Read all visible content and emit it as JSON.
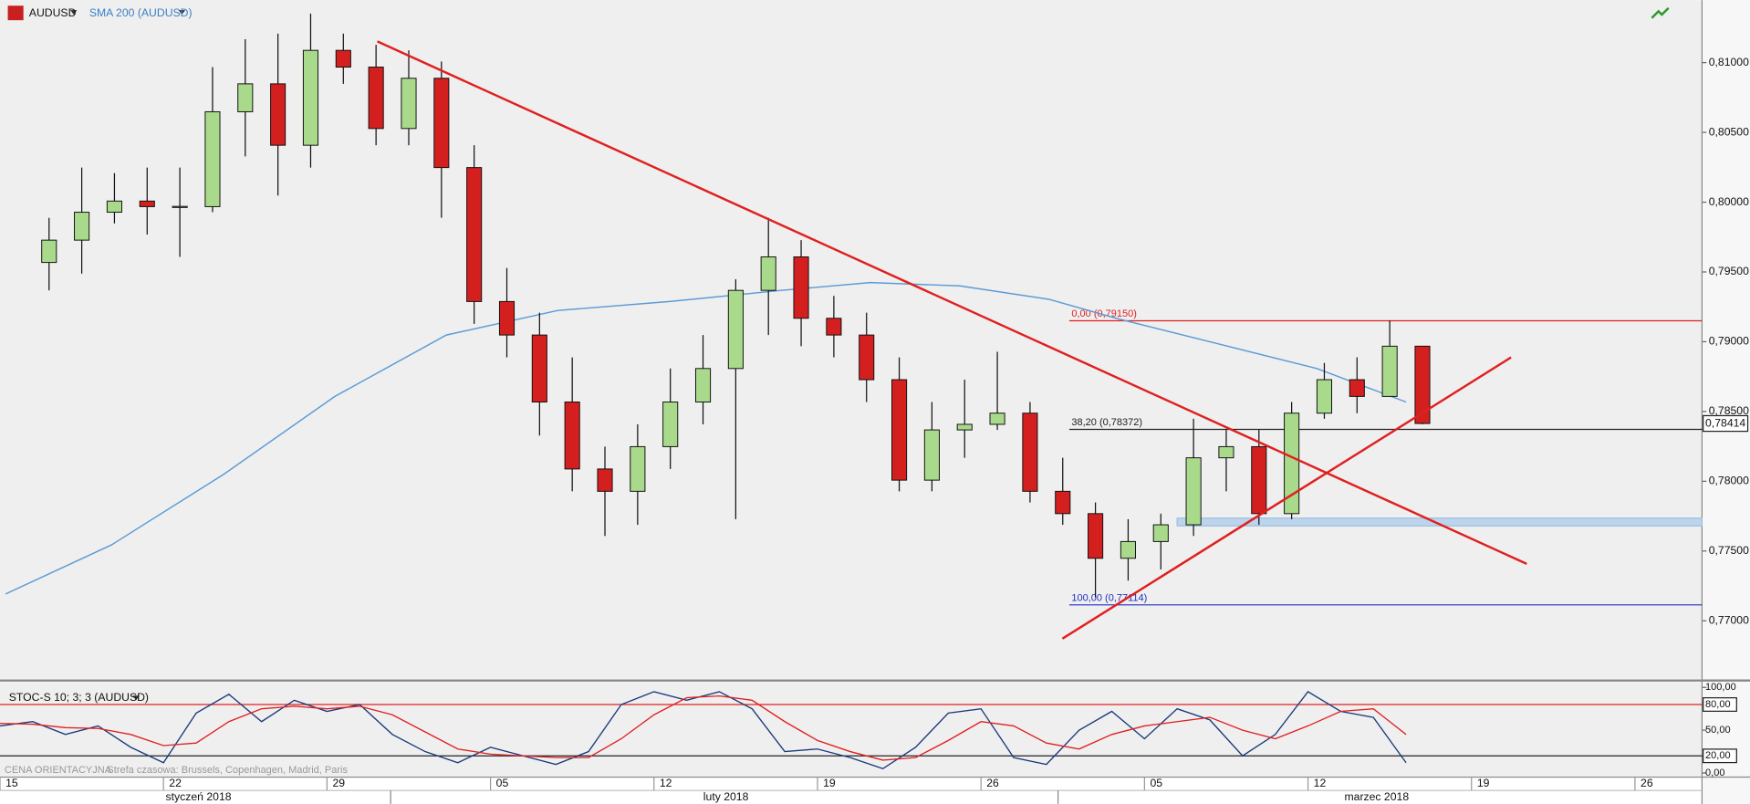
{
  "chart_data": [
    {
      "type": "candlestick",
      "symbol": "AUDUSD",
      "indicator": "SMA 200 (AUDUSD)",
      "x": [
        1.5,
        2.5,
        3.5,
        4.5,
        5.5,
        6.5,
        7.5,
        8.5,
        9.5,
        10.5,
        11.5,
        12.5,
        13.5,
        14.5,
        15.5,
        16.5,
        17.5,
        18.5,
        19.5,
        20.5,
        21.5,
        22.5,
        23.5,
        24.5,
        25.5,
        26.5,
        27.5,
        28.5,
        29.5,
        30.5,
        31.5,
        32.5,
        33.5,
        34.5,
        35.5,
        36.5,
        37.5,
        38.5,
        39.5,
        40.5,
        41.5,
        42.5,
        43.5
      ],
      "open": [
        0.79568,
        0.79728,
        0.79928,
        0.80008,
        0.79968,
        0.79968,
        0.80648,
        0.80848,
        0.80408,
        0.81088,
        0.80968,
        0.80528,
        0.80888,
        0.80248,
        0.79288,
        0.79048,
        0.78568,
        0.78088,
        0.77928,
        0.78248,
        0.78568,
        0.78808,
        0.79368,
        0.79608,
        0.79168,
        0.79048,
        0.78728,
        0.78008,
        0.78368,
        0.78408,
        0.78488,
        0.77928,
        0.77768,
        0.77448,
        0.77568,
        0.77688,
        0.78168,
        0.78248,
        0.77768,
        0.78488,
        0.78728,
        0.78608,
        0.78968
      ],
      "high": [
        0.79888,
        0.80248,
        0.80208,
        0.80248,
        0.80248,
        0.80968,
        0.81168,
        0.81208,
        0.81352,
        0.81208,
        0.81128,
        0.81088,
        0.81008,
        0.80408,
        0.79528,
        0.79208,
        0.78888,
        0.78248,
        0.78408,
        0.78808,
        0.79048,
        0.79448,
        0.79888,
        0.79728,
        0.79328,
        0.79208,
        0.78888,
        0.78568,
        0.78728,
        0.78928,
        0.78568,
        0.78168,
        0.77848,
        0.77728,
        0.77768,
        0.78448,
        0.78368,
        0.78368,
        0.78568,
        0.78848,
        0.78888,
        0.79152,
        0.78968
      ],
      "low": [
        0.79368,
        0.79488,
        0.79848,
        0.79768,
        0.79608,
        0.79928,
        0.80328,
        0.80048,
        0.80248,
        0.80848,
        0.80408,
        0.80408,
        0.79888,
        0.79128,
        0.78888,
        0.78328,
        0.77928,
        0.77608,
        0.77688,
        0.78088,
        0.78408,
        0.77728,
        0.79048,
        0.78968,
        0.78888,
        0.78568,
        0.77928,
        0.77928,
        0.78168,
        0.78368,
        0.77848,
        0.77688,
        0.77168,
        0.77288,
        0.77368,
        0.77608,
        0.77928,
        0.77688,
        0.77728,
        0.78448,
        0.78488,
        0.78608,
        0.78408
      ],
      "close": [
        0.79728,
        0.79928,
        0.80008,
        0.79968,
        0.7997,
        0.80648,
        0.80848,
        0.80408,
        0.81088,
        0.80968,
        0.80528,
        0.80888,
        0.80248,
        0.79288,
        0.79048,
        0.78568,
        0.78088,
        0.77928,
        0.78248,
        0.78568,
        0.78808,
        0.79368,
        0.79608,
        0.79168,
        0.79048,
        0.78728,
        0.78008,
        0.78368,
        0.78408,
        0.78488,
        0.77928,
        0.77768,
        0.77448,
        0.77568,
        0.77688,
        0.78168,
        0.78248,
        0.77768,
        0.78488,
        0.78728,
        0.78608,
        0.78968,
        0.78414
      ],
      "up_color": "#a9d98a",
      "down_color": "#d41f1f",
      "sma": {
        "color": "#5b9bd5",
        "x": [
          0.17,
          3.41,
          6.83,
          10.24,
          13.65,
          17.06,
          20.48,
          23.89,
          26.62,
          29.35,
          32.08,
          34.13,
          37.54,
          40.27,
          43.0
        ],
        "values": [
          0.77192,
          0.77544,
          0.78048,
          0.78608,
          0.79048,
          0.79224,
          0.79288,
          0.79368,
          0.79424,
          0.794,
          0.79304,
          0.79168,
          0.78968,
          0.78808,
          0.78568
        ]
      },
      "trendlines": [
        {
          "color": "#e02020",
          "x": [
            11.54,
            46.69
          ],
          "values": [
            0.81152,
            0.77408
          ]
        },
        {
          "color": "#e02020",
          "x": [
            32.49,
            46.21
          ],
          "values": [
            0.76872,
            0.78888
          ]
        }
      ],
      "fib_x": 32.7,
      "fib_levels": [
        {
          "value": 0.7915,
          "label": "0,00 (0,79150)",
          "color": "#e02020"
        },
        {
          "value": 0.78372,
          "label": "38,20 (0,78372)",
          "color": "#222222"
        },
        {
          "value": 0.77114,
          "label": "100,00 (0,77114)",
          "color": "#2030c0"
        }
      ],
      "zone": {
        "x_start": 36.0,
        "values": [
          0.7768,
          0.77736
        ],
        "color": "#bcd5ec"
      },
      "last_price": {
        "value": 0.78414,
        "label": "0,78414"
      },
      "xlim": [
        0,
        52.05
      ],
      "ylim": [
        0.76584,
        0.81448
      ],
      "xticks": [
        {
          "value": 0,
          "label": "15"
        },
        {
          "value": 5,
          "label": "22"
        },
        {
          "value": 10,
          "label": "29"
        },
        {
          "value": 15,
          "label": "05"
        },
        {
          "value": 20,
          "label": "12"
        },
        {
          "value": 25,
          "label": "19"
        },
        {
          "value": 30,
          "label": "26"
        },
        {
          "value": 35,
          "label": "05"
        },
        {
          "value": 40,
          "label": "12"
        },
        {
          "value": 45,
          "label": "19"
        },
        {
          "value": 50,
          "label": "26"
        }
      ],
      "month_ticks": [
        {
          "value": 6.07,
          "label": "styczeń 2018"
        },
        {
          "value": 22.2,
          "label": "luty 2018"
        },
        {
          "value": 42.1,
          "label": "marzec 2018"
        }
      ],
      "yticks": [
        {
          "value": 0.81,
          "label": "0,81000"
        },
        {
          "value": 0.805,
          "label": "0,80500"
        },
        {
          "value": 0.8,
          "label": "0,80000"
        },
        {
          "value": 0.795,
          "label": "0,79500"
        },
        {
          "value": 0.79,
          "label": "0,79000"
        },
        {
          "value": 0.785,
          "label": "0,78500"
        },
        {
          "value": 0.78,
          "label": "0,78000"
        },
        {
          "value": 0.775,
          "label": "0,77500"
        },
        {
          "value": 0.77,
          "label": "0,77000"
        }
      ]
    },
    {
      "type": "line",
      "title": "STOC-S 10; 3; 3 (AUDUSD)",
      "source_note": "CENA ORIENTACYJNA",
      "timezone_note": "Strefa czasowa: Brussels, Copenhagen, Madrid, Paris",
      "x": [
        0,
        1,
        2,
        3,
        4,
        5,
        6,
        7,
        8,
        9,
        10,
        11,
        12,
        13,
        14,
        15,
        16,
        17,
        18,
        19,
        20,
        21,
        22,
        23,
        24,
        25,
        26,
        27,
        28,
        29,
        30,
        31,
        32,
        33,
        34,
        35,
        36,
        37,
        38,
        39,
        40,
        41,
        42,
        43
      ],
      "series": [
        {
          "color": "#1a3a7a",
          "values": [
            55,
            60,
            45,
            55,
            30,
            12,
            70,
            92,
            60,
            85,
            72,
            80,
            45,
            25,
            12,
            30,
            20,
            10,
            25,
            80,
            95,
            85,
            95,
            75,
            25,
            28,
            18,
            5,
            30,
            70,
            75,
            18,
            10,
            50,
            72,
            40,
            75,
            62,
            20,
            45,
            95,
            72,
            65,
            12
          ]
        },
        {
          "color": "#e02020",
          "values": [
            58,
            57,
            53,
            52,
            45,
            32,
            35,
            60,
            75,
            78,
            75,
            78,
            68,
            48,
            28,
            22,
            20,
            18,
            18,
            40,
            68,
            88,
            90,
            85,
            60,
            38,
            25,
            15,
            18,
            38,
            60,
            55,
            35,
            28,
            45,
            55,
            60,
            65,
            50,
            40,
            55,
            72,
            75,
            45
          ]
        }
      ],
      "levels": [
        {
          "value": 80,
          "color": "#e02020"
        },
        {
          "value": 20,
          "color": "#222222"
        }
      ],
      "ylim": [
        -3.5,
        106.1
      ],
      "yticks": [
        {
          "value": 100,
          "label": "100,00"
        },
        {
          "value": 80,
          "label": "80,00"
        },
        {
          "value": 50,
          "label": "50,00"
        },
        {
          "value": 20,
          "label": "20,00"
        },
        {
          "value": 0,
          "label": "0,00"
        }
      ]
    }
  ]
}
